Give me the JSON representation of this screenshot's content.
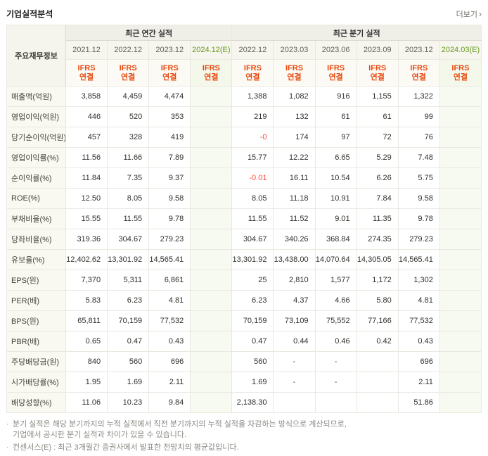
{
  "page": {
    "title": "기업실적분석",
    "more": {
      "label": "더보기",
      "arrow": "›"
    }
  },
  "table": {
    "corner_label": "주요재무정보",
    "groups": [
      {
        "label": "최근 연간 실적",
        "span": 4
      },
      {
        "label": "최근 분기 실적",
        "span": 6
      }
    ],
    "ifrs_lines": [
      "IFRS",
      "연결"
    ],
    "columns": [
      {
        "label": "2021.12",
        "estimate": false
      },
      {
        "label": "2022.12",
        "estimate": false
      },
      {
        "label": "2023.12",
        "estimate": false
      },
      {
        "label": "2024.12(E)",
        "estimate": true
      },
      {
        "label": "2022.12",
        "estimate": false
      },
      {
        "label": "2023.03",
        "estimate": false
      },
      {
        "label": "2023.06",
        "estimate": false
      },
      {
        "label": "2023.09",
        "estimate": false
      },
      {
        "label": "2023.12",
        "estimate": false
      },
      {
        "label": "2024.03(E)",
        "estimate": true
      }
    ],
    "rows": [
      {
        "label": "매출액(억원)",
        "values": [
          "3,858",
          "4,459",
          "4,474",
          "",
          "1,388",
          "1,082",
          "916",
          "1,155",
          "1,322",
          ""
        ]
      },
      {
        "label": "영업이익(억원)",
        "values": [
          "446",
          "520",
          "353",
          "",
          "219",
          "132",
          "61",
          "61",
          "99",
          ""
        ]
      },
      {
        "label": "당기순이익(억원)",
        "values": [
          "457",
          "328",
          "419",
          "",
          "-0",
          "174",
          "97",
          "72",
          "76",
          ""
        ]
      },
      {
        "label": "영업이익률(%)",
        "values": [
          "11.56",
          "11.66",
          "7.89",
          "",
          "15.77",
          "12.22",
          "6.65",
          "5.29",
          "7.48",
          ""
        ]
      },
      {
        "label": "순이익률(%)",
        "values": [
          "11.84",
          "7.35",
          "9.37",
          "",
          "-0.01",
          "16.11",
          "10.54",
          "6.26",
          "5.75",
          ""
        ]
      },
      {
        "label": "ROE(%)",
        "values": [
          "12.50",
          "8.05",
          "9.58",
          "",
          "8.05",
          "11.18",
          "10.91",
          "7.84",
          "9.58",
          ""
        ]
      },
      {
        "label": "부채비율(%)",
        "values": [
          "15.55",
          "11.55",
          "9.78",
          "",
          "11.55",
          "11.52",
          "9.01",
          "11.35",
          "9.78",
          ""
        ]
      },
      {
        "label": "당좌비율(%)",
        "values": [
          "319.36",
          "304.67",
          "279.23",
          "",
          "304.67",
          "340.26",
          "368.84",
          "274.35",
          "279.23",
          ""
        ]
      },
      {
        "label": "유보율(%)",
        "values": [
          "12,402.62",
          "13,301.92",
          "14,565.41",
          "",
          "13,301.92",
          "13,438.00",
          "14,070.64",
          "14,305.05",
          "14,565.41",
          ""
        ]
      },
      {
        "label": "EPS(원)",
        "values": [
          "7,370",
          "5,311",
          "6,861",
          "",
          "25",
          "2,810",
          "1,577",
          "1,172",
          "1,302",
          ""
        ]
      },
      {
        "label": "PER(배)",
        "values": [
          "5.83",
          "6.23",
          "4.81",
          "",
          "6.23",
          "4.37",
          "4.66",
          "5.80",
          "4.81",
          ""
        ]
      },
      {
        "label": "BPS(원)",
        "values": [
          "65,811",
          "70,159",
          "77,532",
          "",
          "70,159",
          "73,109",
          "75,552",
          "77,166",
          "77,532",
          ""
        ]
      },
      {
        "label": "PBR(배)",
        "values": [
          "0.65",
          "0.47",
          "0.43",
          "",
          "0.47",
          "0.44",
          "0.46",
          "0.42",
          "0.43",
          ""
        ]
      },
      {
        "label": "주당배당금(원)",
        "values": [
          "840",
          "560",
          "696",
          "",
          "560",
          "-",
          "-",
          "",
          "696",
          ""
        ]
      },
      {
        "label": "시가배당률(%)",
        "values": [
          "1.95",
          "1.69",
          "2.11",
          "",
          "1.69",
          "-",
          "-",
          "",
          "2.11",
          ""
        ]
      },
      {
        "label": "배당성향(%)",
        "values": [
          "11.06",
          "10.23",
          "9.84",
          "",
          "2,138.30",
          "",
          "",
          "",
          "51.86",
          ""
        ]
      }
    ],
    "colors": {
      "ifrs_orange": "#e8490f",
      "estimate_green": "#679a1c",
      "negative_red": "#fa4b42"
    }
  },
  "footnotes": {
    "bullet": "·",
    "items": [
      "분기 실적은 해당 분기까지의 누적 실적에서 직전 분기까지의 누적 실적을 차감하는 방식으로 계산되므로,\n기업에서 공시한 분기 실적과 차이가 있을 수 있습니다.",
      "컨센서스(E) : 최근 3개월간 증권사에서 발표한 전망치의 평균값입니다."
    ]
  }
}
